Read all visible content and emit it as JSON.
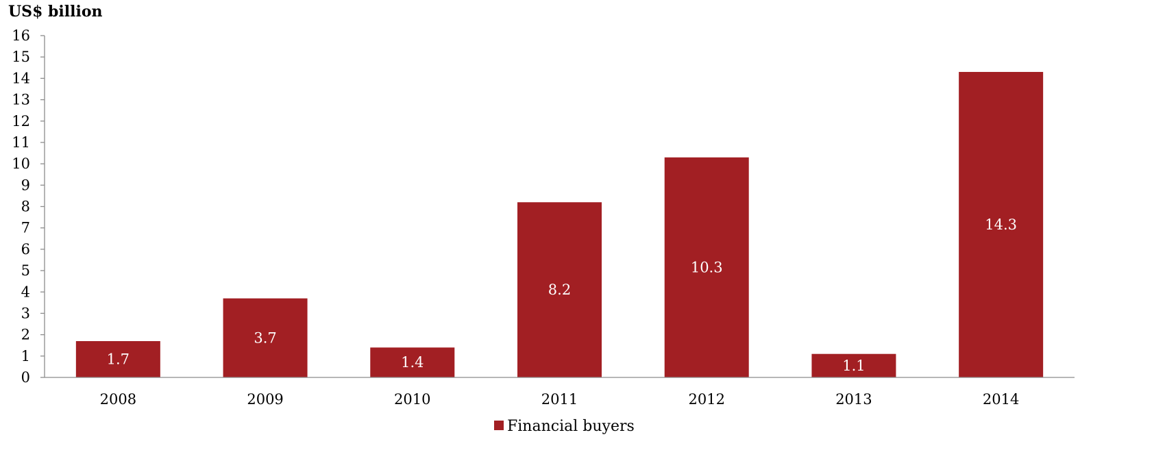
{
  "chart_data": {
    "type": "bar",
    "title": "",
    "ylabel": "US$ billion",
    "xlabel": "",
    "categories": [
      "2008",
      "2009",
      "2010",
      "2011",
      "2012",
      "2013",
      "2014"
    ],
    "series": [
      {
        "name": "Financial buyers",
        "values": [
          1.7,
          3.7,
          1.4,
          8.2,
          10.3,
          1.1,
          14.3
        ],
        "color": "#A21F23"
      }
    ],
    "ylim": [
      0,
      16
    ],
    "yticks": [
      0,
      1,
      2,
      3,
      4,
      5,
      6,
      7,
      8,
      9,
      10,
      11,
      12,
      13,
      14,
      15,
      16
    ],
    "grid": false,
    "legend": "bottom-center",
    "data_labels": "inside"
  }
}
